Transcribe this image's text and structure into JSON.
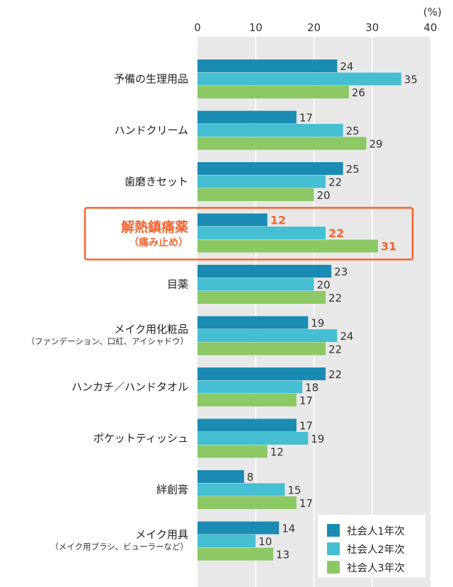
{
  "chart_data": {
    "type": "bar",
    "orientation": "horizontal",
    "unit_label": "(%)",
    "xlim": [
      0,
      40
    ],
    "ticks": [
      0,
      10,
      20,
      30,
      40
    ],
    "grid": true,
    "legend_position": "bottom-right",
    "categories": [
      {
        "label": "予備の生理用品",
        "sub": ""
      },
      {
        "label": "ハンドクリーム",
        "sub": ""
      },
      {
        "label": "歯磨きセット",
        "sub": ""
      },
      {
        "label": "解熱鎮痛薬",
        "sub": "（痛み止め）",
        "highlight": true
      },
      {
        "label": "目薬",
        "sub": ""
      },
      {
        "label": "メイク用化粧品",
        "sub": "（ファンデーション、口紅、アイシャドウ）"
      },
      {
        "label": "ハンカチ／ハンドタオル",
        "sub": ""
      },
      {
        "label": "ポケットティッシュ",
        "sub": ""
      },
      {
        "label": "絆創膏",
        "sub": ""
      },
      {
        "label": "メイク用具",
        "sub": "（メイク用ブラシ、ビューラーなど）"
      }
    ],
    "series": [
      {
        "name": "社会人1年次",
        "color": "#1a8bb3",
        "values": [
          24,
          17,
          25,
          12,
          23,
          19,
          22,
          17,
          8,
          14
        ]
      },
      {
        "name": "社会人2年次",
        "color": "#45bfd1",
        "values": [
          35,
          25,
          22,
          22,
          20,
          24,
          18,
          19,
          15,
          10
        ]
      },
      {
        "name": "社会人3年次",
        "color": "#8cc864",
        "values": [
          26,
          29,
          20,
          31,
          22,
          22,
          17,
          12,
          17,
          13
        ]
      }
    ],
    "colors": {
      "plot_background": "#e8e8e8",
      "gridline": "#ffffff",
      "highlight": "#f26430"
    }
  }
}
